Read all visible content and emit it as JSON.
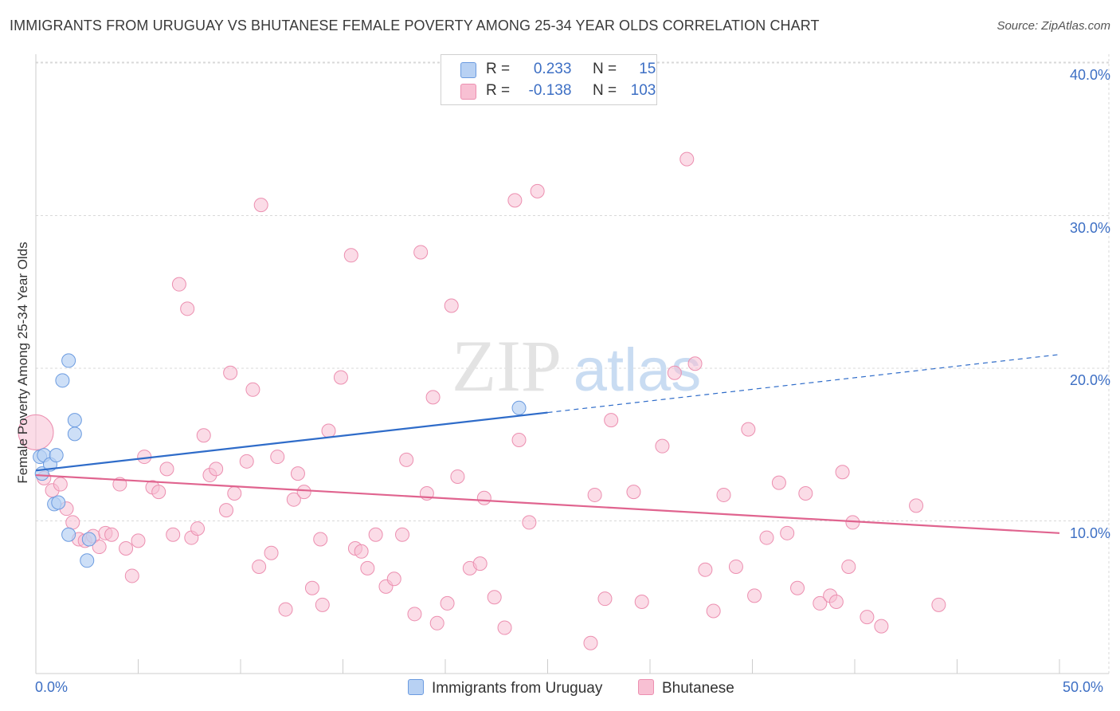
{
  "header": {
    "title": "IMMIGRANTS FROM URUGUAY VS BHUTANESE FEMALE POVERTY AMONG 25-34 YEAR OLDS CORRELATION CHART",
    "source": "Source: ZipAtlas.com"
  },
  "legend": {
    "rows": [
      {
        "r_label": "R =",
        "r_value": "0.233",
        "n_label": "N =",
        "n_value": "15"
      },
      {
        "r_label": "R =",
        "r_value": "-0.138",
        "n_label": "N =",
        "n_value": "103"
      }
    ]
  },
  "watermark": {
    "zip": "ZIP",
    "atlas": "atlas"
  },
  "colors": {
    "uruguay_fill": "#b8d1f3",
    "uruguay_stroke": "#6b9be0",
    "uruguay_line": "#2f6cc9",
    "bhutanese_fill": "#f8c0d3",
    "bhutanese_stroke": "#ec8fb0",
    "bhutanese_line": "#e0648f",
    "tick_text": "#3d6fc4",
    "grid": "#d9d9d9"
  },
  "chart_data": {
    "type": "scatter",
    "title": "IMMIGRANTS FROM URUGUAY VS BHUTANESE FEMALE POVERTY AMONG 25-34 YEAR OLDS CORRELATION CHART",
    "xlabel": "",
    "ylabel": "Female Poverty Among 25-34 Year Olds",
    "xlim": [
      0,
      50
    ],
    "ylim": [
      0,
      40
    ],
    "x_tick_labels": [
      "0.0%",
      "50.0%"
    ],
    "y_tick_labels": [
      "10.0%",
      "20.0%",
      "30.0%",
      "40.0%"
    ],
    "y_ticks": [
      10,
      20,
      30,
      40
    ],
    "grid": true,
    "legend_position": "bottom",
    "series": [
      {
        "name": "Immigrants from Uruguay",
        "r": 0.233,
        "n": 15,
        "trend": {
          "x0": 0,
          "y0": 13.3,
          "x1": 25,
          "y1": 17.1,
          "x_dash_end": 50,
          "y_dash_end": 20.9
        },
        "points": [
          {
            "x": 0.2,
            "y": 14.2
          },
          {
            "x": 0.3,
            "y": 13.1
          },
          {
            "x": 0.4,
            "y": 14.3
          },
          {
            "x": 0.7,
            "y": 13.7
          },
          {
            "x": 1.0,
            "y": 14.3
          },
          {
            "x": 0.9,
            "y": 11.1
          },
          {
            "x": 1.1,
            "y": 11.2
          },
          {
            "x": 1.3,
            "y": 19.2
          },
          {
            "x": 1.6,
            "y": 20.5
          },
          {
            "x": 1.9,
            "y": 16.6
          },
          {
            "x": 1.9,
            "y": 15.7
          },
          {
            "x": 1.6,
            "y": 9.1
          },
          {
            "x": 2.6,
            "y": 8.8
          },
          {
            "x": 2.5,
            "y": 7.4
          },
          {
            "x": 23.6,
            "y": 17.4
          }
        ]
      },
      {
        "name": "Bhutanese",
        "r": -0.138,
        "n": 103,
        "trend": {
          "x0": 0,
          "y0": 13.0,
          "x1": 50,
          "y1": 9.2
        },
        "points": [
          {
            "x": 0.0,
            "y": 15.8,
            "big": true
          },
          {
            "x": 0.4,
            "y": 12.8
          },
          {
            "x": 0.8,
            "y": 12.0
          },
          {
            "x": 1.2,
            "y": 12.4
          },
          {
            "x": 1.5,
            "y": 10.8
          },
          {
            "x": 1.8,
            "y": 9.9
          },
          {
            "x": 2.1,
            "y": 8.8
          },
          {
            "x": 2.4,
            "y": 8.7
          },
          {
            "x": 2.8,
            "y": 9.0
          },
          {
            "x": 3.1,
            "y": 8.3
          },
          {
            "x": 3.4,
            "y": 9.2
          },
          {
            "x": 3.7,
            "y": 9.1
          },
          {
            "x": 4.1,
            "y": 12.4
          },
          {
            "x": 4.4,
            "y": 8.2
          },
          {
            "x": 4.7,
            "y": 6.4
          },
          {
            "x": 5.0,
            "y": 8.7
          },
          {
            "x": 5.3,
            "y": 14.2
          },
          {
            "x": 5.7,
            "y": 12.2
          },
          {
            "x": 6.0,
            "y": 11.9
          },
          {
            "x": 6.4,
            "y": 13.4
          },
          {
            "x": 6.7,
            "y": 9.1
          },
          {
            "x": 7.0,
            "y": 25.5
          },
          {
            "x": 7.4,
            "y": 23.9
          },
          {
            "x": 7.6,
            "y": 8.9
          },
          {
            "x": 7.9,
            "y": 9.5
          },
          {
            "x": 8.2,
            "y": 15.6
          },
          {
            "x": 8.5,
            "y": 13.0
          },
          {
            "x": 8.8,
            "y": 13.4
          },
          {
            "x": 9.3,
            "y": 10.7
          },
          {
            "x": 9.5,
            "y": 19.7
          },
          {
            "x": 9.7,
            "y": 11.8
          },
          {
            "x": 10.3,
            "y": 13.9
          },
          {
            "x": 10.6,
            "y": 18.6
          },
          {
            "x": 10.9,
            "y": 7.0
          },
          {
            "x": 11.0,
            "y": 30.7
          },
          {
            "x": 11.5,
            "y": 7.9
          },
          {
            "x": 11.8,
            "y": 14.2
          },
          {
            "x": 12.2,
            "y": 4.2
          },
          {
            "x": 12.6,
            "y": 11.4
          },
          {
            "x": 12.8,
            "y": 13.1
          },
          {
            "x": 13.1,
            "y": 11.9
          },
          {
            "x": 13.5,
            "y": 5.6
          },
          {
            "x": 13.9,
            "y": 8.8
          },
          {
            "x": 14.0,
            "y": 4.5
          },
          {
            "x": 14.3,
            "y": 15.9
          },
          {
            "x": 14.9,
            "y": 19.4
          },
          {
            "x": 15.4,
            "y": 27.4
          },
          {
            "x": 15.6,
            "y": 8.2
          },
          {
            "x": 15.9,
            "y": 8.0
          },
          {
            "x": 16.2,
            "y": 6.9
          },
          {
            "x": 16.6,
            "y": 9.1
          },
          {
            "x": 17.1,
            "y": 5.7
          },
          {
            "x": 17.5,
            "y": 6.2
          },
          {
            "x": 17.9,
            "y": 9.1
          },
          {
            "x": 18.1,
            "y": 14.0
          },
          {
            "x": 18.5,
            "y": 3.9
          },
          {
            "x": 18.8,
            "y": 27.6
          },
          {
            "x": 19.1,
            "y": 11.8
          },
          {
            "x": 19.4,
            "y": 18.1
          },
          {
            "x": 19.6,
            "y": 3.3
          },
          {
            "x": 20.1,
            "y": 4.6
          },
          {
            "x": 20.3,
            "y": 24.1
          },
          {
            "x": 20.6,
            "y": 12.9
          },
          {
            "x": 21.2,
            "y": 6.9
          },
          {
            "x": 21.7,
            "y": 7.2
          },
          {
            "x": 21.9,
            "y": 11.5
          },
          {
            "x": 22.4,
            "y": 5.0
          },
          {
            "x": 22.9,
            "y": 3.0
          },
          {
            "x": 23.4,
            "y": 31.0
          },
          {
            "x": 23.6,
            "y": 15.3
          },
          {
            "x": 24.1,
            "y": 9.9
          },
          {
            "x": 24.5,
            "y": 31.6
          },
          {
            "x": 27.1,
            "y": 2.0
          },
          {
            "x": 27.3,
            "y": 11.7
          },
          {
            "x": 27.8,
            "y": 4.9
          },
          {
            "x": 28.1,
            "y": 16.6
          },
          {
            "x": 29.2,
            "y": 11.9
          },
          {
            "x": 29.6,
            "y": 4.7
          },
          {
            "x": 30.6,
            "y": 14.9
          },
          {
            "x": 31.2,
            "y": 19.7
          },
          {
            "x": 31.8,
            "y": 33.7
          },
          {
            "x": 32.2,
            "y": 20.3
          },
          {
            "x": 32.7,
            "y": 6.8
          },
          {
            "x": 33.1,
            "y": 4.1
          },
          {
            "x": 33.6,
            "y": 11.7
          },
          {
            "x": 34.2,
            "y": 7.0
          },
          {
            "x": 34.8,
            "y": 16.0
          },
          {
            "x": 35.1,
            "y": 5.1
          },
          {
            "x": 35.7,
            "y": 8.9
          },
          {
            "x": 36.3,
            "y": 12.5
          },
          {
            "x": 36.7,
            "y": 9.2
          },
          {
            "x": 37.2,
            "y": 5.6
          },
          {
            "x": 37.6,
            "y": 11.8
          },
          {
            "x": 38.3,
            "y": 4.6
          },
          {
            "x": 38.8,
            "y": 5.1
          },
          {
            "x": 39.1,
            "y": 4.7
          },
          {
            "x": 39.4,
            "y": 13.2
          },
          {
            "x": 39.7,
            "y": 7.0
          },
          {
            "x": 39.9,
            "y": 9.9
          },
          {
            "x": 40.6,
            "y": 3.7
          },
          {
            "x": 41.3,
            "y": 3.1
          },
          {
            "x": 43.0,
            "y": 11.0
          },
          {
            "x": 44.1,
            "y": 4.5
          }
        ]
      }
    ]
  }
}
